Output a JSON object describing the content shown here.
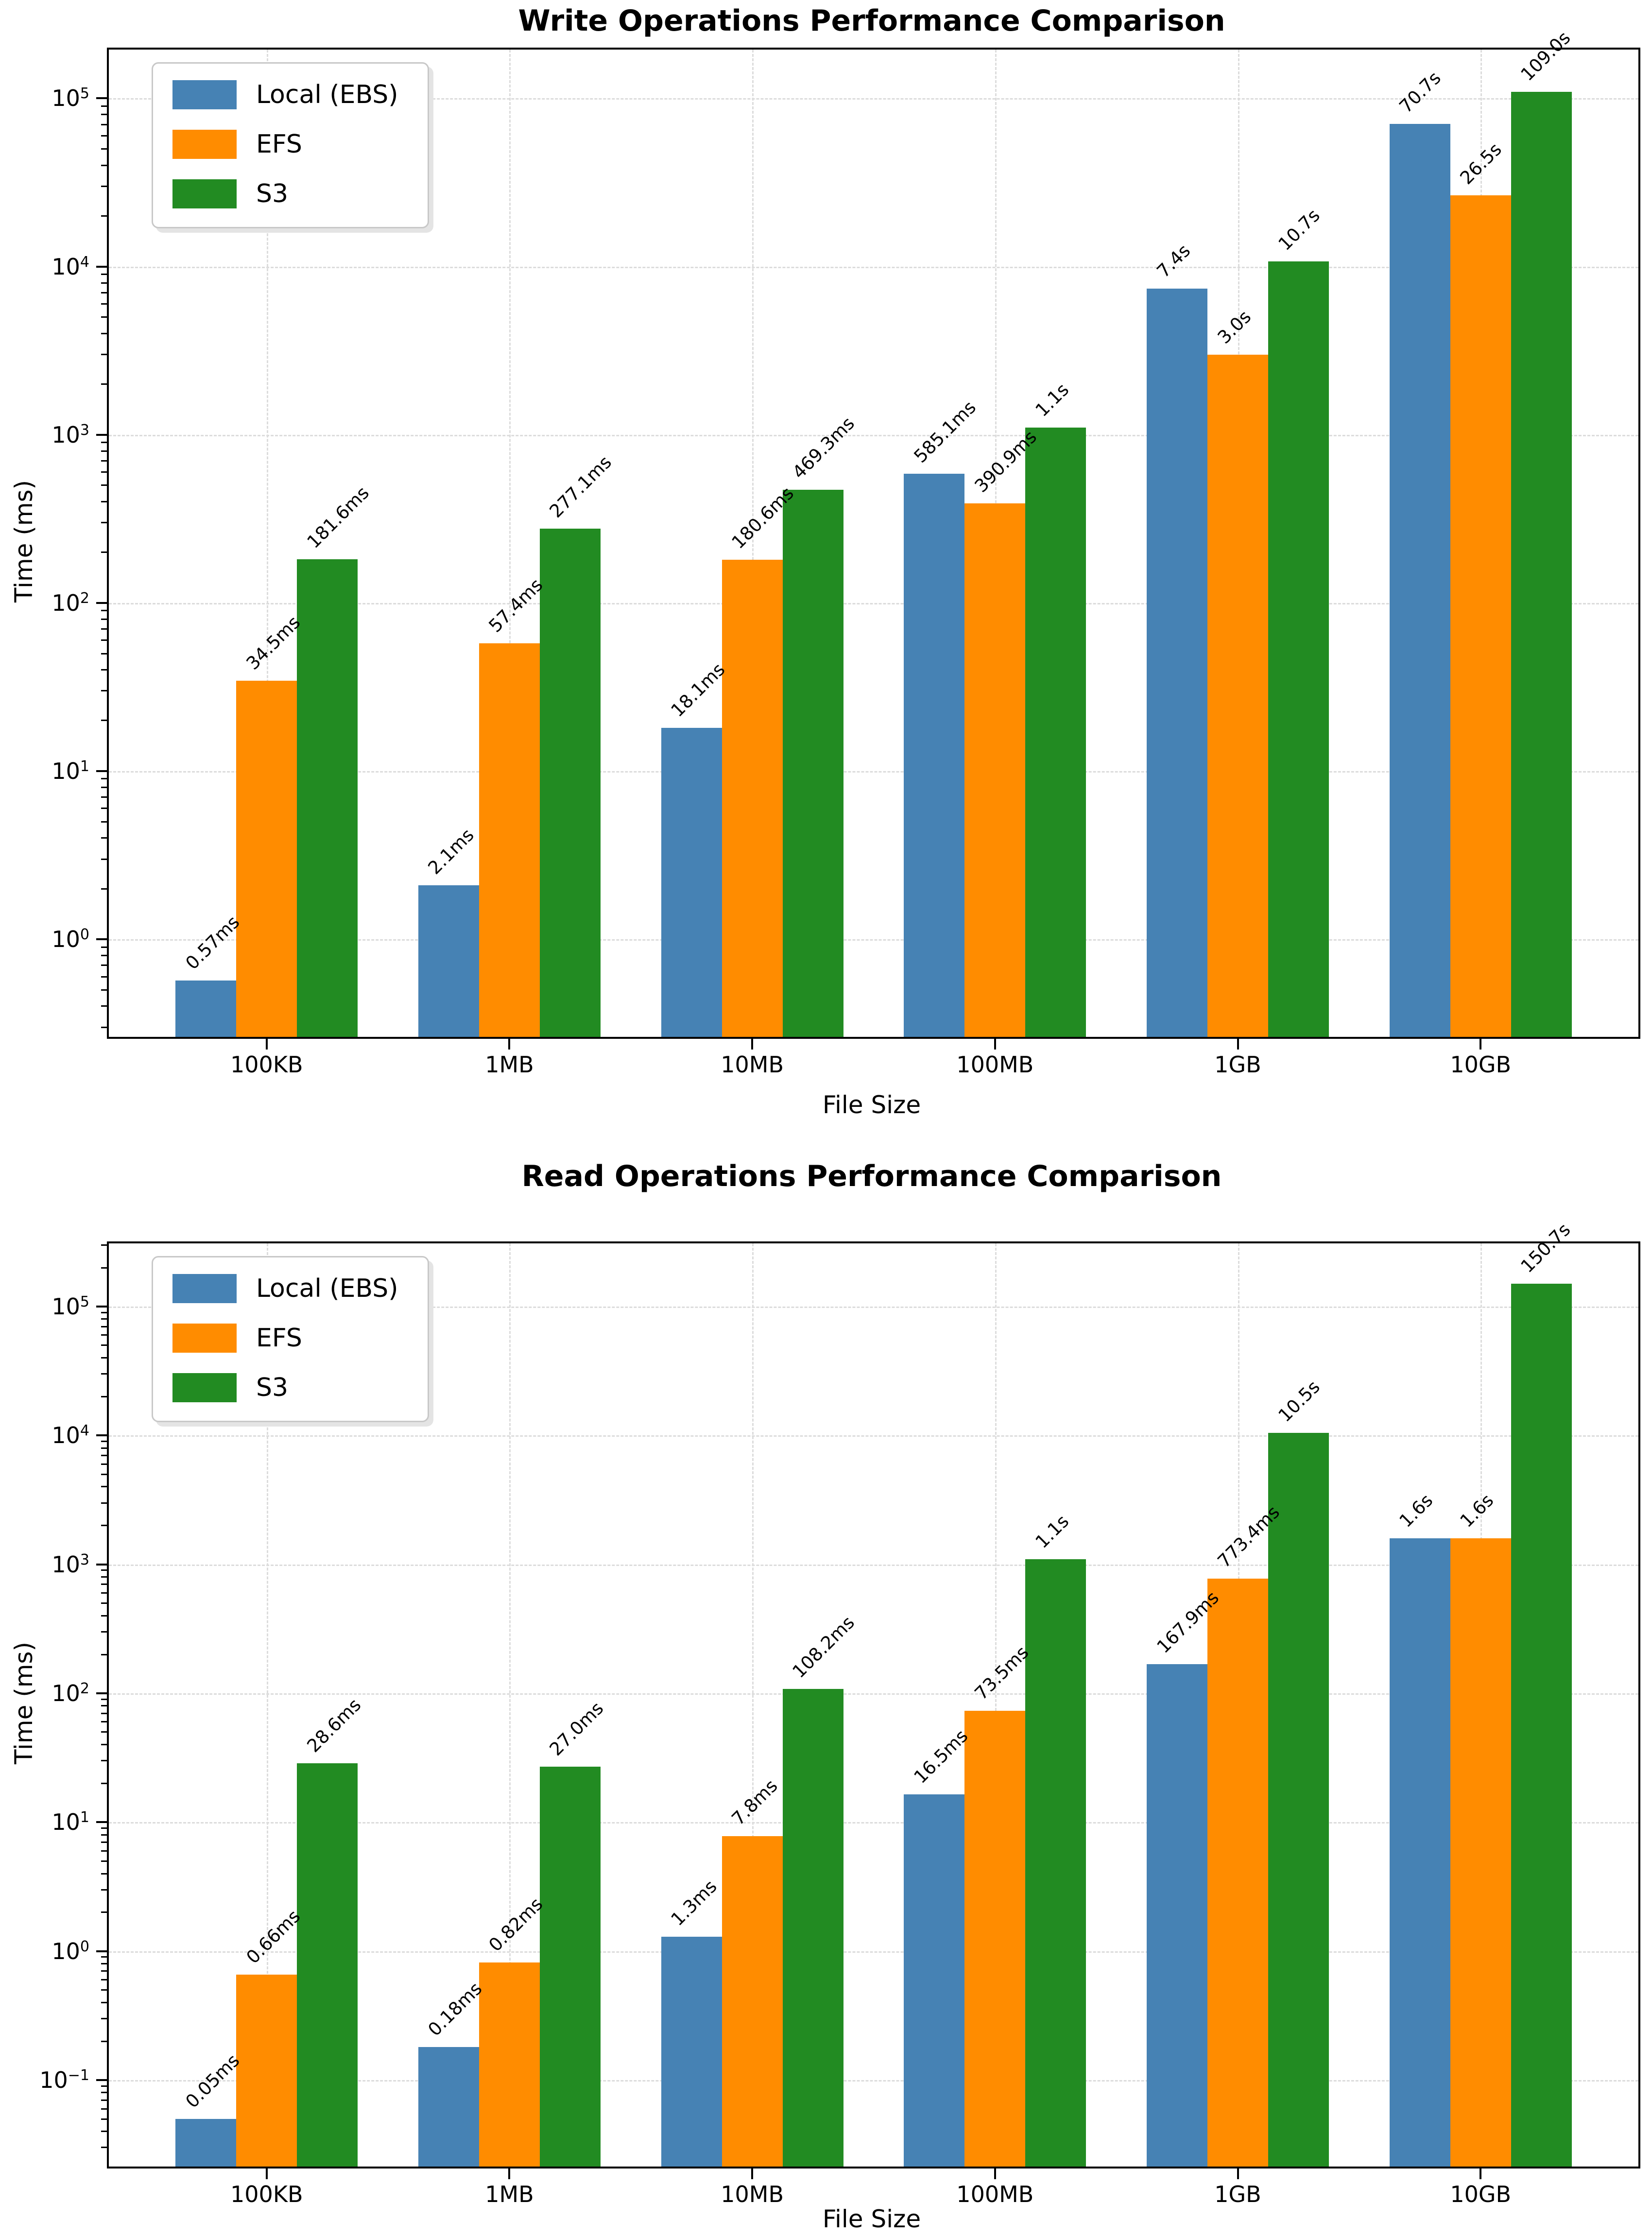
{
  "page": {
    "background": "#ffffff"
  },
  "colors": {
    "local_ebs": "#4682B4",
    "efs": "#FF8C00",
    "s3": "#228B22",
    "grid": "#dcdcdc",
    "spine": "#000000"
  },
  "chart_data": [
    {
      "type": "bar",
      "title": "Write Operations Performance Comparison",
      "xlabel": "File Size",
      "ylabel": "Time (ms)",
      "yscale": "log",
      "ylim_log10": [
        -0.58,
        5.29
      ],
      "ytick_exponents": [
        0,
        1,
        2,
        3,
        4,
        5
      ],
      "grid": true,
      "legend_position": "upper left",
      "categories": [
        "100KB",
        "1MB",
        "10MB",
        "100MB",
        "1GB",
        "10GB"
      ],
      "series": [
        {
          "name": "Local (EBS)",
          "color": "#4682B4",
          "values_ms": [
            0.57,
            2.1,
            18.1,
            585.1,
            7400,
            70700
          ],
          "labels": [
            "0.57ms",
            "2.1ms",
            "18.1ms",
            "585.1ms",
            "7.4s",
            "70.7s"
          ]
        },
        {
          "name": "EFS",
          "color": "#FF8C00",
          "values_ms": [
            34.5,
            57.4,
            180.6,
            390.9,
            3000,
            26500
          ],
          "labels": [
            "34.5ms",
            "57.4ms",
            "180.6ms",
            "390.9ms",
            "3.0s",
            "26.5s"
          ]
        },
        {
          "name": "S3",
          "color": "#228B22",
          "values_ms": [
            181.6,
            277.1,
            469.3,
            1100,
            10700,
            109000
          ],
          "labels": [
            "181.6ms",
            "277.1ms",
            "469.3ms",
            "1.1s",
            "10.7s",
            "109.0s"
          ]
        }
      ]
    },
    {
      "type": "bar",
      "title": "Read Operations Performance Comparison",
      "xlabel": "File Size",
      "ylabel": "Time (ms)",
      "yscale": "log",
      "ylim_log10": [
        -1.67,
        5.49
      ],
      "ytick_exponents": [
        -1,
        0,
        1,
        2,
        3,
        4,
        5
      ],
      "grid": true,
      "legend_position": "upper left",
      "categories": [
        "100KB",
        "1MB",
        "10MB",
        "100MB",
        "1GB",
        "10GB"
      ],
      "series": [
        {
          "name": "Local (EBS)",
          "color": "#4682B4",
          "values_ms": [
            0.05,
            0.18,
            1.3,
            16.5,
            167.9,
            1600
          ],
          "labels": [
            "0.05ms",
            "0.18ms",
            "1.3ms",
            "16.5ms",
            "167.9ms",
            "1.6s"
          ]
        },
        {
          "name": "EFS",
          "color": "#FF8C00",
          "values_ms": [
            0.66,
            0.82,
            7.8,
            73.5,
            773.4,
            1600
          ],
          "labels": [
            "0.66ms",
            "0.82ms",
            "7.8ms",
            "73.5ms",
            "773.4ms",
            "1.6s"
          ]
        },
        {
          "name": "S3",
          "color": "#228B22",
          "values_ms": [
            28.6,
            27.0,
            108.2,
            1100,
            10500,
            150700
          ],
          "labels": [
            "28.6ms",
            "27.0ms",
            "108.2ms",
            "1.1s",
            "10.5s",
            "150.7s"
          ]
        }
      ]
    }
  ]
}
